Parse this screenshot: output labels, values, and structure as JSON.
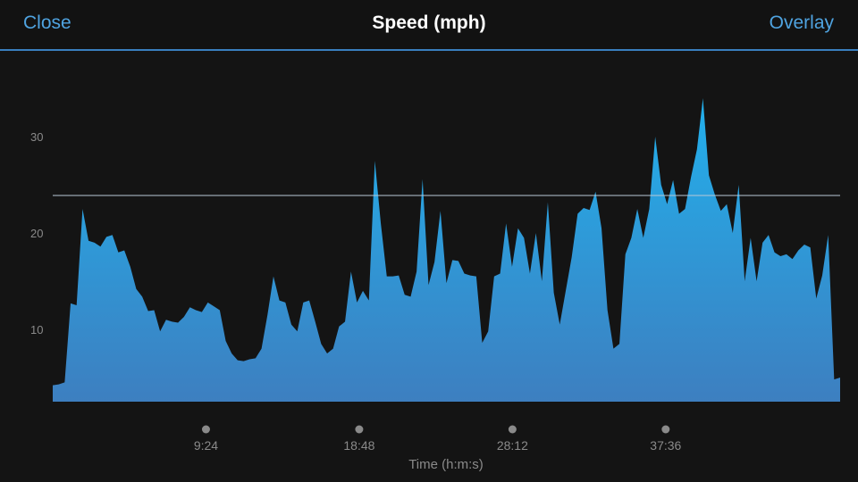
{
  "header": {
    "close_label": "Close",
    "title": "Speed (mph)",
    "overlay_label": "Overlay"
  },
  "colors": {
    "accent": "#4fa3e0",
    "fill_top": "#22b0ec",
    "fill_bottom": "#3d7fc0",
    "background": "#141414",
    "reference_line": "#b8c8d6"
  },
  "chart_data": {
    "type": "area",
    "title": "Speed (mph)",
    "xlabel": "Time (h:m:s)",
    "ylabel": "",
    "ylim": [
      2.5,
      36
    ],
    "yticks": [
      10,
      20,
      30
    ],
    "xticks": [
      "9:24",
      "18:48",
      "28:12",
      "37:36"
    ],
    "xtick_minutes": [
      9.4,
      18.8,
      28.2,
      37.6
    ],
    "xlim": [
      0,
      48.3
    ],
    "reference_line": 23.9,
    "series": [
      {
        "values": [
          4.2,
          4.3,
          4.5,
          12.7,
          12.5,
          22.5,
          19.2,
          19.0,
          18.6,
          19.6,
          19.8,
          18.0,
          18.2,
          16.5,
          14.2,
          13.4,
          11.9,
          12.0,
          9.8,
          11.0,
          10.8,
          10.7,
          11.3,
          12.3,
          12.0,
          11.8,
          12.8,
          12.4,
          12.0,
          8.8,
          7.5,
          6.8,
          6.7,
          6.9,
          7.0,
          8.0,
          11.5,
          15.5,
          13.0,
          12.8,
          10.5,
          9.8,
          12.8,
          13.0,
          10.8,
          8.5,
          7.5,
          8.0,
          10.3,
          10.8,
          16.0,
          12.8,
          14.0,
          13.0,
          27.5,
          21.0,
          15.5,
          15.5,
          15.6,
          13.6,
          13.4,
          16.0,
          25.6,
          14.6,
          17.0,
          22.3,
          14.8,
          17.2,
          17.1,
          15.8,
          15.6,
          15.5,
          8.6,
          9.8,
          15.5,
          15.8,
          21.0,
          16.5,
          20.5,
          19.5,
          15.8,
          20.0,
          15.0,
          23.2,
          13.8,
          10.5,
          14.0,
          17.5,
          22.0,
          22.6,
          22.4,
          24.3,
          20.5,
          12.0,
          8.0,
          8.5,
          17.8,
          19.5,
          22.5,
          19.5,
          22.5,
          30.0,
          25.0,
          23.0,
          25.5,
          22.0,
          22.5,
          25.8,
          28.7,
          34.0,
          26.0,
          24.0,
          22.3,
          23.0,
          20.0,
          25.0,
          15.0,
          19.5,
          15.0,
          19.0,
          19.8,
          18.0,
          17.6,
          17.8,
          17.3,
          18.2,
          18.8,
          18.5,
          13.2,
          15.6,
          19.8,
          4.8,
          5.0
        ]
      }
    ],
    "legend": "none",
    "grid": false
  }
}
